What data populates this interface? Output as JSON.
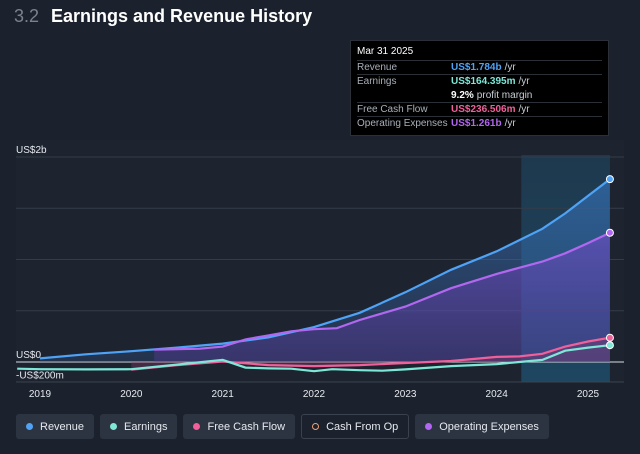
{
  "header": {
    "section_number": "3.2",
    "title": "Earnings and Revenue History"
  },
  "tooltip": {
    "date": "Mar 31 2025",
    "rows": [
      {
        "label": "Revenue",
        "value": "US$1.784b",
        "unit": "/yr",
        "color": "#4fa3f7"
      },
      {
        "label": "Earnings",
        "value": "US$164.395m",
        "unit": "/yr",
        "color": "#7ee7d8"
      },
      {
        "label": "",
        "value": "9.2%",
        "unit": "profit margin",
        "color": "#ffffff"
      },
      {
        "label": "Free Cash Flow",
        "value": "US$236.506m",
        "unit": "/yr",
        "color": "#f0609a"
      },
      {
        "label": "Operating Expenses",
        "value": "US$1.261b",
        "unit": "/yr",
        "color": "#b267f0"
      }
    ]
  },
  "legend": [
    {
      "label": "Revenue",
      "color": "#4fa3f7",
      "icon": "revenue-dot-icon"
    },
    {
      "label": "Earnings",
      "color": "#7ee7d8",
      "icon": "earnings-dot-icon"
    },
    {
      "label": "Free Cash Flow",
      "color": "#f0609a",
      "icon": "fcf-dot-icon"
    },
    {
      "label": "Cash From Op",
      "color": "#f0a070",
      "icon": "cfo-hollow-dot-icon",
      "hollow": true
    },
    {
      "label": "Operating Expenses",
      "color": "#b267f0",
      "icon": "opex-dot-icon"
    }
  ],
  "chart_data": {
    "type": "area",
    "x_ticks": [
      2019,
      2020,
      2021,
      2022,
      2023,
      2024,
      2025
    ],
    "y_tick_labels": [
      {
        "value": 2000,
        "label": "US$2b"
      },
      {
        "value": 0,
        "label": "US$0"
      },
      {
        "value": -200,
        "label": "-US$200m"
      }
    ],
    "ylim": [
      -200,
      2000
    ],
    "highlight_from": 2024.27,
    "series": [
      {
        "name": "Revenue",
        "color": "#4fa3f7",
        "x": [
          2019.0,
          2019.5,
          2020.0,
          2020.5,
          2021.0,
          2021.5,
          2022.0,
          2022.5,
          2023.0,
          2023.5,
          2024.0,
          2024.5,
          2024.75,
          2025.0,
          2025.24
        ],
        "y": [
          35,
          75,
          105,
          140,
          180,
          240,
          340,
          480,
          680,
          900,
          1080,
          1300,
          1450,
          1620,
          1784
        ]
      },
      {
        "name": "Earnings",
        "color": "#7ee7d8",
        "x": [
          2018.75,
          2019.0,
          2019.5,
          2020.0,
          2020.5,
          2021.0,
          2021.25,
          2021.5,
          2021.75,
          2022.0,
          2022.2,
          2022.5,
          2022.75,
          2023.0,
          2023.5,
          2024.0,
          2024.25,
          2024.5,
          2024.75,
          2025.0,
          2025.24
        ],
        "y": [
          -65,
          -70,
          -72,
          -70,
          -25,
          20,
          -55,
          -62,
          -65,
          -90,
          -70,
          -80,
          -85,
          -72,
          -40,
          -20,
          0,
          20,
          110,
          140,
          164
        ]
      },
      {
        "name": "Free Cash Flow",
        "color": "#f0609a",
        "x": [
          2020.0,
          2020.5,
          2021.0,
          2021.5,
          2022.0,
          2022.5,
          2023.0,
          2023.5,
          2024.0,
          2024.25,
          2024.5,
          2024.75,
          2025.0,
          2025.24
        ],
        "y": [
          -75,
          -30,
          5,
          -30,
          -40,
          -30,
          -10,
          10,
          50,
          55,
          80,
          150,
          200,
          237
        ]
      },
      {
        "name": "Operating Expenses",
        "color": "#b267f0",
        "x": [
          2020.25,
          2020.75,
          2021.0,
          2021.25,
          2021.5,
          2021.75,
          2022.0,
          2022.25,
          2022.5,
          2023.0,
          2023.5,
          2024.0,
          2024.25,
          2024.5,
          2024.75,
          2025.0,
          2025.24
        ],
        "y": [
          120,
          130,
          150,
          220,
          260,
          300,
          320,
          330,
          410,
          540,
          720,
          860,
          920,
          980,
          1060,
          1160,
          1261
        ]
      }
    ]
  }
}
